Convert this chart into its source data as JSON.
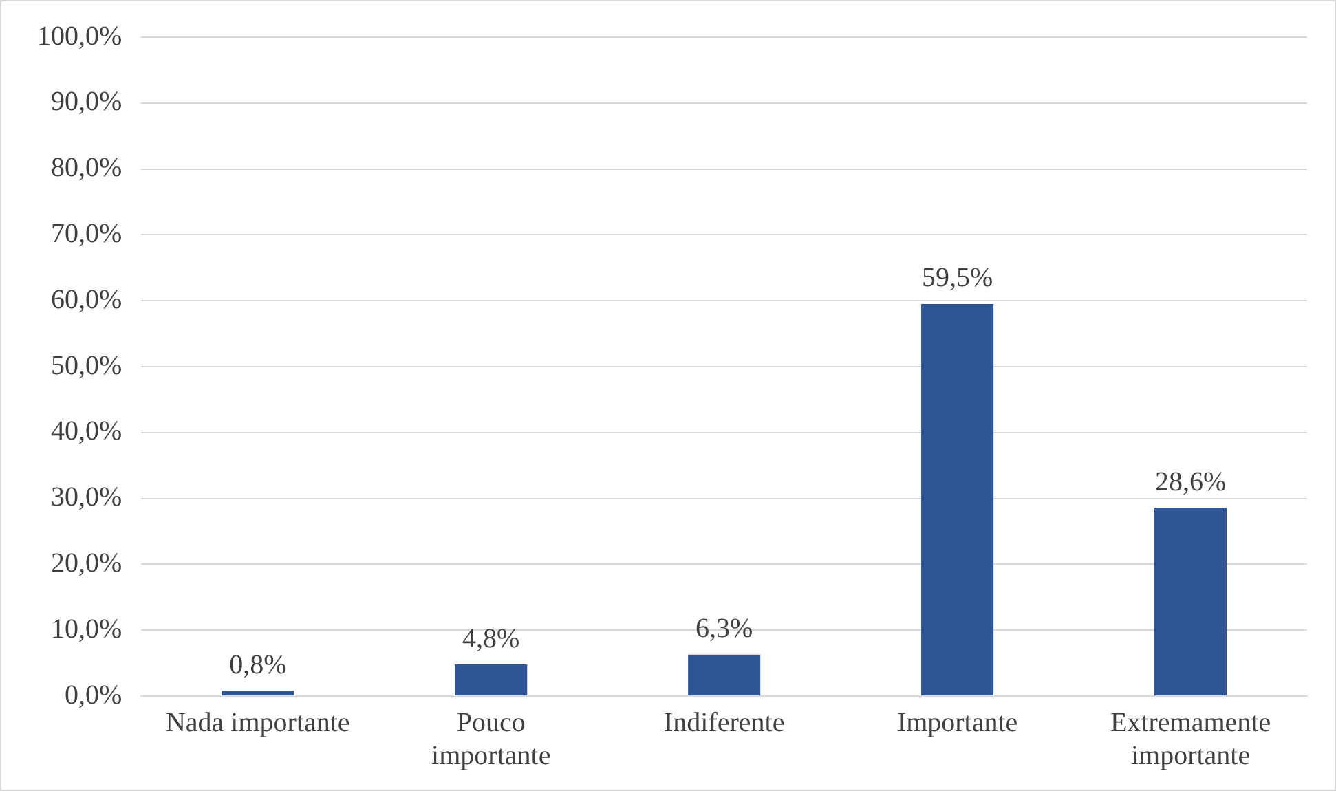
{
  "chart_data": {
    "type": "bar",
    "categories": [
      "Nada importante",
      "Pouco importante",
      "Indiferente",
      "Importante",
      "Extremamente importante"
    ],
    "values": [
      0.8,
      4.8,
      6.3,
      59.5,
      28.6
    ],
    "value_labels": [
      "0,8%",
      "4,8%",
      "6,3%",
      "59,5%",
      "28,6%"
    ],
    "color": "#2f5597",
    "ylim": [
      0,
      100
    ],
    "yticks": [
      {
        "value": 0,
        "label": "0,0%"
      },
      {
        "value": 10,
        "label": "10,0%"
      },
      {
        "value": 20,
        "label": "20,0%"
      },
      {
        "value": 30,
        "label": "30,0%"
      },
      {
        "value": 40,
        "label": "40,0%"
      },
      {
        "value": 50,
        "label": "50,0%"
      },
      {
        "value": 60,
        "label": "60,0%"
      },
      {
        "value": 70,
        "label": "70,0%"
      },
      {
        "value": 80,
        "label": "80,0%"
      },
      {
        "value": 90,
        "label": "90,0%"
      },
      {
        "value": 100,
        "label": "100,0%"
      }
    ],
    "grid": "y"
  }
}
